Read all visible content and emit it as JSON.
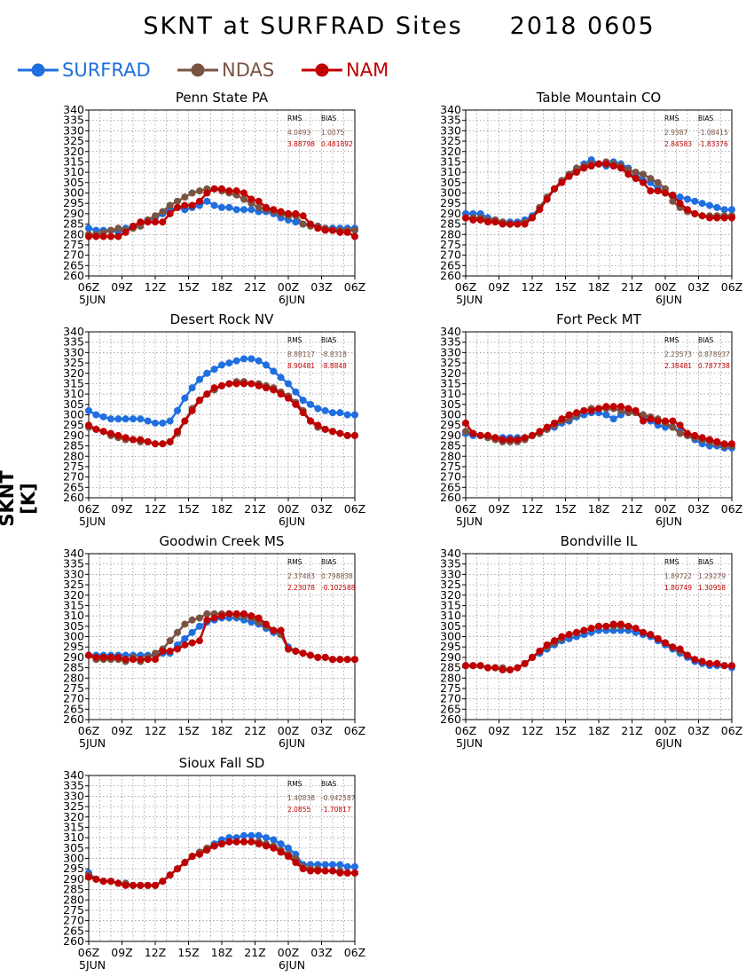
{
  "title": "SKNT at SURFRAD Sites     2018 0605",
  "y_axis_title": "SKNT [K]",
  "legend": [
    {
      "label": "SURFRAD",
      "color": "#1f6fe0"
    },
    {
      "label": "NDAS",
      "color": "#7a5443"
    },
    {
      "label": "NAM",
      "color": "#c00000"
    }
  ],
  "stats_headers": {
    "rms": "RMS",
    "bias": "BIAS"
  },
  "chart_data": [
    {
      "type": "line",
      "title": "Penn State PA",
      "ylim": [
        260,
        340
      ],
      "xlim": [
        0,
        24
      ],
      "x_ticks": [
        "06Z",
        "09Z",
        "12Z",
        "15Z",
        "18Z",
        "21Z",
        "00Z",
        "03Z",
        "06Z"
      ],
      "date_labels": [
        "5JUN",
        "6JUN"
      ],
      "grid": true,
      "stats": [
        {
          "source": "NDAS",
          "rms": "4.0493",
          "bias": "1.0075"
        },
        {
          "source": "NAM",
          "rms": "3.88798",
          "bias": "0.481892"
        }
      ],
      "series": [
        {
          "name": "SURFRAD",
          "values": [
            283,
            282,
            282,
            282,
            281,
            283,
            284,
            285,
            287,
            288,
            290,
            292,
            293,
            292,
            293,
            294,
            296,
            294,
            293,
            293,
            292,
            292,
            292,
            291,
            291,
            290,
            288,
            287,
            286,
            285,
            285,
            284,
            283,
            283,
            283,
            283,
            283
          ]
        },
        {
          "name": "NDAS",
          "values": [
            280,
            280,
            281,
            282,
            283,
            282,
            283,
            284,
            287,
            289,
            291,
            294,
            296,
            298,
            300,
            301,
            302,
            302,
            301,
            300,
            299,
            297,
            295,
            293,
            292,
            291,
            290,
            289,
            289,
            285,
            284,
            284,
            283,
            282,
            282,
            282,
            282
          ]
        },
        {
          "name": "NAM",
          "values": [
            279,
            279,
            279,
            279,
            279,
            281,
            284,
            286,
            286,
            286,
            286,
            290,
            293,
            294,
            294,
            296,
            300,
            302,
            302,
            301,
            301,
            300,
            297,
            296,
            293,
            292,
            291,
            290,
            290,
            289,
            285,
            283,
            282,
            282,
            281,
            281,
            279
          ]
        }
      ]
    },
    {
      "type": "line",
      "title": "Table Mountain CO",
      "ylim": [
        260,
        340
      ],
      "xlim": [
        0,
        24
      ],
      "x_ticks": [
        "06Z",
        "09Z",
        "12Z",
        "15Z",
        "18Z",
        "21Z",
        "00Z",
        "03Z",
        "06Z"
      ],
      "date_labels": [
        "5JUN",
        "6JUN"
      ],
      "grid": true,
      "stats": [
        {
          "source": "NDAS",
          "rms": "2.9387",
          "bias": "-1.08415"
        },
        {
          "source": "NAM",
          "rms": "2.84583",
          "bias": "-1.83376"
        }
      ],
      "series": [
        {
          "name": "SURFRAD",
          "values": [
            290,
            290,
            290,
            288,
            287,
            286,
            286,
            286,
            287,
            289,
            293,
            297,
            302,
            306,
            309,
            311,
            314,
            316,
            314,
            313,
            315,
            314,
            312,
            309,
            306,
            305,
            302,
            300,
            299,
            298,
            297,
            296,
            295,
            294,
            293,
            292,
            292
          ]
        },
        {
          "name": "NDAS",
          "values": [
            288,
            288,
            288,
            287,
            287,
            286,
            285,
            285,
            286,
            288,
            293,
            298,
            302,
            306,
            309,
            312,
            313,
            314,
            314,
            315,
            314,
            313,
            311,
            310,
            309,
            307,
            305,
            302,
            296,
            293,
            291,
            290,
            289,
            289,
            289,
            289,
            289
          ]
        },
        {
          "name": "NAM",
          "values": [
            288,
            287,
            287,
            286,
            286,
            285,
            285,
            285,
            285,
            288,
            292,
            297,
            302,
            305,
            308,
            310,
            312,
            313,
            314,
            314,
            313,
            312,
            309,
            307,
            305,
            301,
            301,
            300,
            299,
            295,
            292,
            290,
            289,
            288,
            288,
            288,
            288
          ]
        }
      ]
    },
    {
      "type": "line",
      "title": "Desert Rock NV",
      "ylim": [
        260,
        340
      ],
      "xlim": [
        0,
        24
      ],
      "x_ticks": [
        "06Z",
        "09Z",
        "12Z",
        "15Z",
        "18Z",
        "21Z",
        "00Z",
        "03Z",
        "06Z"
      ],
      "date_labels": [
        "5JUN",
        "6JUN"
      ],
      "grid": true,
      "stats": [
        {
          "source": "NDAS",
          "rms": "8.88117",
          "bias": "-8.8318"
        },
        {
          "source": "NAM",
          "rms": "8.90481",
          "bias": "-8.8848"
        }
      ],
      "series": [
        {
          "name": "SURFRAD",
          "values": [
            302,
            300,
            299,
            298,
            298,
            298,
            298,
            298,
            297,
            296,
            296,
            297,
            302,
            308,
            313,
            317,
            320,
            322,
            324,
            325,
            326,
            327,
            327,
            326,
            324,
            321,
            318,
            315,
            311,
            307,
            305,
            303,
            302,
            301,
            301,
            300,
            300
          ]
        },
        {
          "name": "NDAS",
          "values": [
            294,
            293,
            292,
            290,
            289,
            288,
            288,
            287,
            287,
            286,
            286,
            287,
            291,
            297,
            303,
            307,
            310,
            312,
            314,
            315,
            316,
            316,
            315,
            315,
            314,
            313,
            311,
            309,
            306,
            302,
            297,
            294,
            293,
            292,
            291,
            290,
            290
          ]
        },
        {
          "name": "NAM",
          "values": [
            295,
            293,
            292,
            291,
            290,
            289,
            288,
            288,
            287,
            286,
            286,
            287,
            292,
            297,
            302,
            307,
            310,
            313,
            314,
            315,
            315,
            315,
            315,
            314,
            313,
            312,
            310,
            308,
            305,
            301,
            297,
            295,
            293,
            292,
            291,
            290,
            290
          ]
        }
      ]
    },
    {
      "type": "line",
      "title": "Fort Peck MT",
      "ylim": [
        260,
        340
      ],
      "xlim": [
        0,
        24
      ],
      "x_ticks": [
        "06Z",
        "09Z",
        "12Z",
        "15Z",
        "18Z",
        "21Z",
        "00Z",
        "03Z",
        "06Z"
      ],
      "date_labels": [
        "5JUN",
        "6JUN"
      ],
      "grid": true,
      "stats": [
        {
          "source": "NDAS",
          "rms": "2.23573",
          "bias": "0.878937"
        },
        {
          "source": "NAM",
          "rms": "2.38481",
          "bias": "0.787738"
        }
      ],
      "series": [
        {
          "name": "SURFRAD",
          "values": [
            291,
            290,
            290,
            289,
            289,
            289,
            289,
            289,
            289,
            290,
            291,
            293,
            294,
            296,
            297,
            299,
            300,
            301,
            301,
            300,
            298,
            300,
            302,
            301,
            299,
            297,
            295,
            294,
            294,
            292,
            290,
            288,
            286,
            285,
            285,
            284,
            284
          ]
        },
        {
          "name": "NDAS",
          "values": [
            292,
            291,
            290,
            289,
            288,
            287,
            287,
            287,
            288,
            290,
            291,
            293,
            295,
            297,
            298,
            300,
            302,
            303,
            303,
            303,
            303,
            302,
            301,
            301,
            300,
            299,
            298,
            296,
            294,
            291,
            290,
            289,
            288,
            287,
            286,
            285,
            285
          ]
        },
        {
          "name": "NAM",
          "values": [
            296,
            291,
            290,
            290,
            289,
            288,
            288,
            288,
            289,
            290,
            292,
            294,
            296,
            298,
            300,
            301,
            302,
            302,
            303,
            304,
            304,
            304,
            303,
            302,
            297,
            298,
            297,
            297,
            297,
            295,
            291,
            290,
            289,
            288,
            287,
            286,
            286
          ]
        }
      ]
    },
    {
      "type": "line",
      "title": "Goodwin Creek MS",
      "ylim": [
        260,
        340
      ],
      "xlim": [
        0,
        24
      ],
      "x_ticks": [
        "06Z",
        "09Z",
        "12Z",
        "15Z",
        "18Z",
        "21Z",
        "00Z",
        "03Z",
        "06Z"
      ],
      "date_labels": [
        "5JUN",
        "6JUN"
      ],
      "grid": true,
      "stats": [
        {
          "source": "NDAS",
          "rms": "2.37483",
          "bias": "0.798838"
        },
        {
          "source": "NAM",
          "rms": "2.23078",
          "bias": "-0.102588"
        }
      ],
      "series": [
        {
          "name": "SURFRAD",
          "values": [
            291,
            291,
            291,
            291,
            291,
            291,
            291,
            291,
            291,
            291,
            292,
            292,
            296,
            299,
            302,
            305,
            307,
            308,
            309,
            309,
            309,
            308,
            307,
            306,
            304,
            302,
            301,
            295,
            293,
            292,
            291,
            290,
            290,
            289,
            289,
            289,
            289
          ]
        },
        {
          "name": "NDAS",
          "values": [
            291,
            289,
            289,
            289,
            289,
            288,
            290,
            288,
            290,
            292,
            294,
            298,
            302,
            306,
            308,
            309,
            311,
            311,
            311,
            311,
            310,
            310,
            309,
            307,
            305,
            303,
            301,
            294,
            293,
            292,
            291,
            290,
            290,
            289,
            289,
            289,
            289
          ]
        },
        {
          "name": "NAM",
          "values": [
            291,
            290,
            290,
            290,
            290,
            289,
            289,
            289,
            289,
            289,
            293,
            293,
            294,
            296,
            297,
            298,
            308,
            309,
            310,
            311,
            311,
            311,
            310,
            309,
            306,
            303,
            303,
            294,
            293,
            292,
            291,
            290,
            290,
            289,
            289,
            289,
            289
          ]
        }
      ]
    },
    {
      "type": "line",
      "title": "Bondville IL",
      "ylim": [
        260,
        340
      ],
      "xlim": [
        0,
        24
      ],
      "x_ticks": [
        "06Z",
        "09Z",
        "12Z",
        "15Z",
        "18Z",
        "21Z",
        "00Z",
        "03Z",
        "06Z"
      ],
      "date_labels": [
        "5JUN",
        "6JUN"
      ],
      "grid": true,
      "stats": [
        {
          "source": "NDAS",
          "rms": "1.89722",
          "bias": "1.29279"
        },
        {
          "source": "NAM",
          "rms": "1.80749",
          "bias": "1.30958"
        }
      ],
      "series": [
        {
          "name": "SURFRAD",
          "values": [
            286,
            286,
            286,
            285,
            285,
            284,
            284,
            285,
            287,
            290,
            292,
            294,
            296,
            298,
            299,
            300,
            301,
            302,
            303,
            303,
            303,
            303,
            303,
            302,
            301,
            300,
            298,
            296,
            294,
            292,
            290,
            288,
            287,
            286,
            286,
            286,
            285
          ]
        },
        {
          "name": "NDAS",
          "values": [
            286,
            286,
            286,
            285,
            285,
            285,
            284,
            285,
            287,
            290,
            293,
            295,
            297,
            299,
            301,
            302,
            303,
            304,
            305,
            305,
            305,
            305,
            305,
            304,
            302,
            301,
            299,
            297,
            295,
            293,
            291,
            289,
            288,
            287,
            287,
            286,
            286
          ]
        },
        {
          "name": "NAM",
          "values": [
            286,
            286,
            286,
            285,
            285,
            284,
            284,
            285,
            287,
            290,
            293,
            296,
            298,
            300,
            301,
            302,
            303,
            304,
            305,
            305,
            306,
            306,
            305,
            304,
            302,
            301,
            299,
            297,
            295,
            294,
            291,
            289,
            288,
            287,
            287,
            286,
            286
          ]
        }
      ]
    },
    {
      "type": "line",
      "title": "Sioux Fall SD",
      "ylim": [
        260,
        340
      ],
      "xlim": [
        0,
        24
      ],
      "x_ticks": [
        "06Z",
        "09Z",
        "12Z",
        "15Z",
        "18Z",
        "21Z",
        "00Z",
        "03Z",
        "06Z"
      ],
      "date_labels": [
        "5JUN",
        "6JUN"
      ],
      "grid": true,
      "stats": [
        {
          "source": "NDAS",
          "rms": "1.40838",
          "bias": "-0.942587"
        },
        {
          "source": "NAM",
          "rms": "2.0855",
          "bias": "-1.70817"
        }
      ],
      "series": [
        {
          "name": "SURFRAD",
          "values": [
            293,
            290,
            289,
            289,
            288,
            288,
            287,
            287,
            287,
            287,
            289,
            292,
            295,
            298,
            301,
            303,
            305,
            307,
            309,
            310,
            310,
            311,
            311,
            311,
            310,
            309,
            307,
            305,
            302,
            297,
            297,
            297,
            297,
            297,
            297,
            296,
            296
          ]
        },
        {
          "name": "NDAS",
          "values": [
            292,
            290,
            289,
            289,
            288,
            288,
            287,
            287,
            287,
            287,
            289,
            292,
            295,
            298,
            301,
            303,
            305,
            306,
            307,
            308,
            308,
            308,
            308,
            308,
            307,
            306,
            304,
            302,
            300,
            296,
            295,
            295,
            294,
            294,
            294,
            293,
            293
          ]
        },
        {
          "name": "NAM",
          "values": [
            291,
            290,
            289,
            289,
            288,
            287,
            287,
            287,
            287,
            287,
            289,
            292,
            295,
            298,
            301,
            302,
            304,
            306,
            307,
            308,
            308,
            308,
            308,
            307,
            306,
            305,
            303,
            301,
            298,
            295,
            294,
            294,
            294,
            294,
            293,
            293,
            293
          ]
        }
      ]
    }
  ]
}
